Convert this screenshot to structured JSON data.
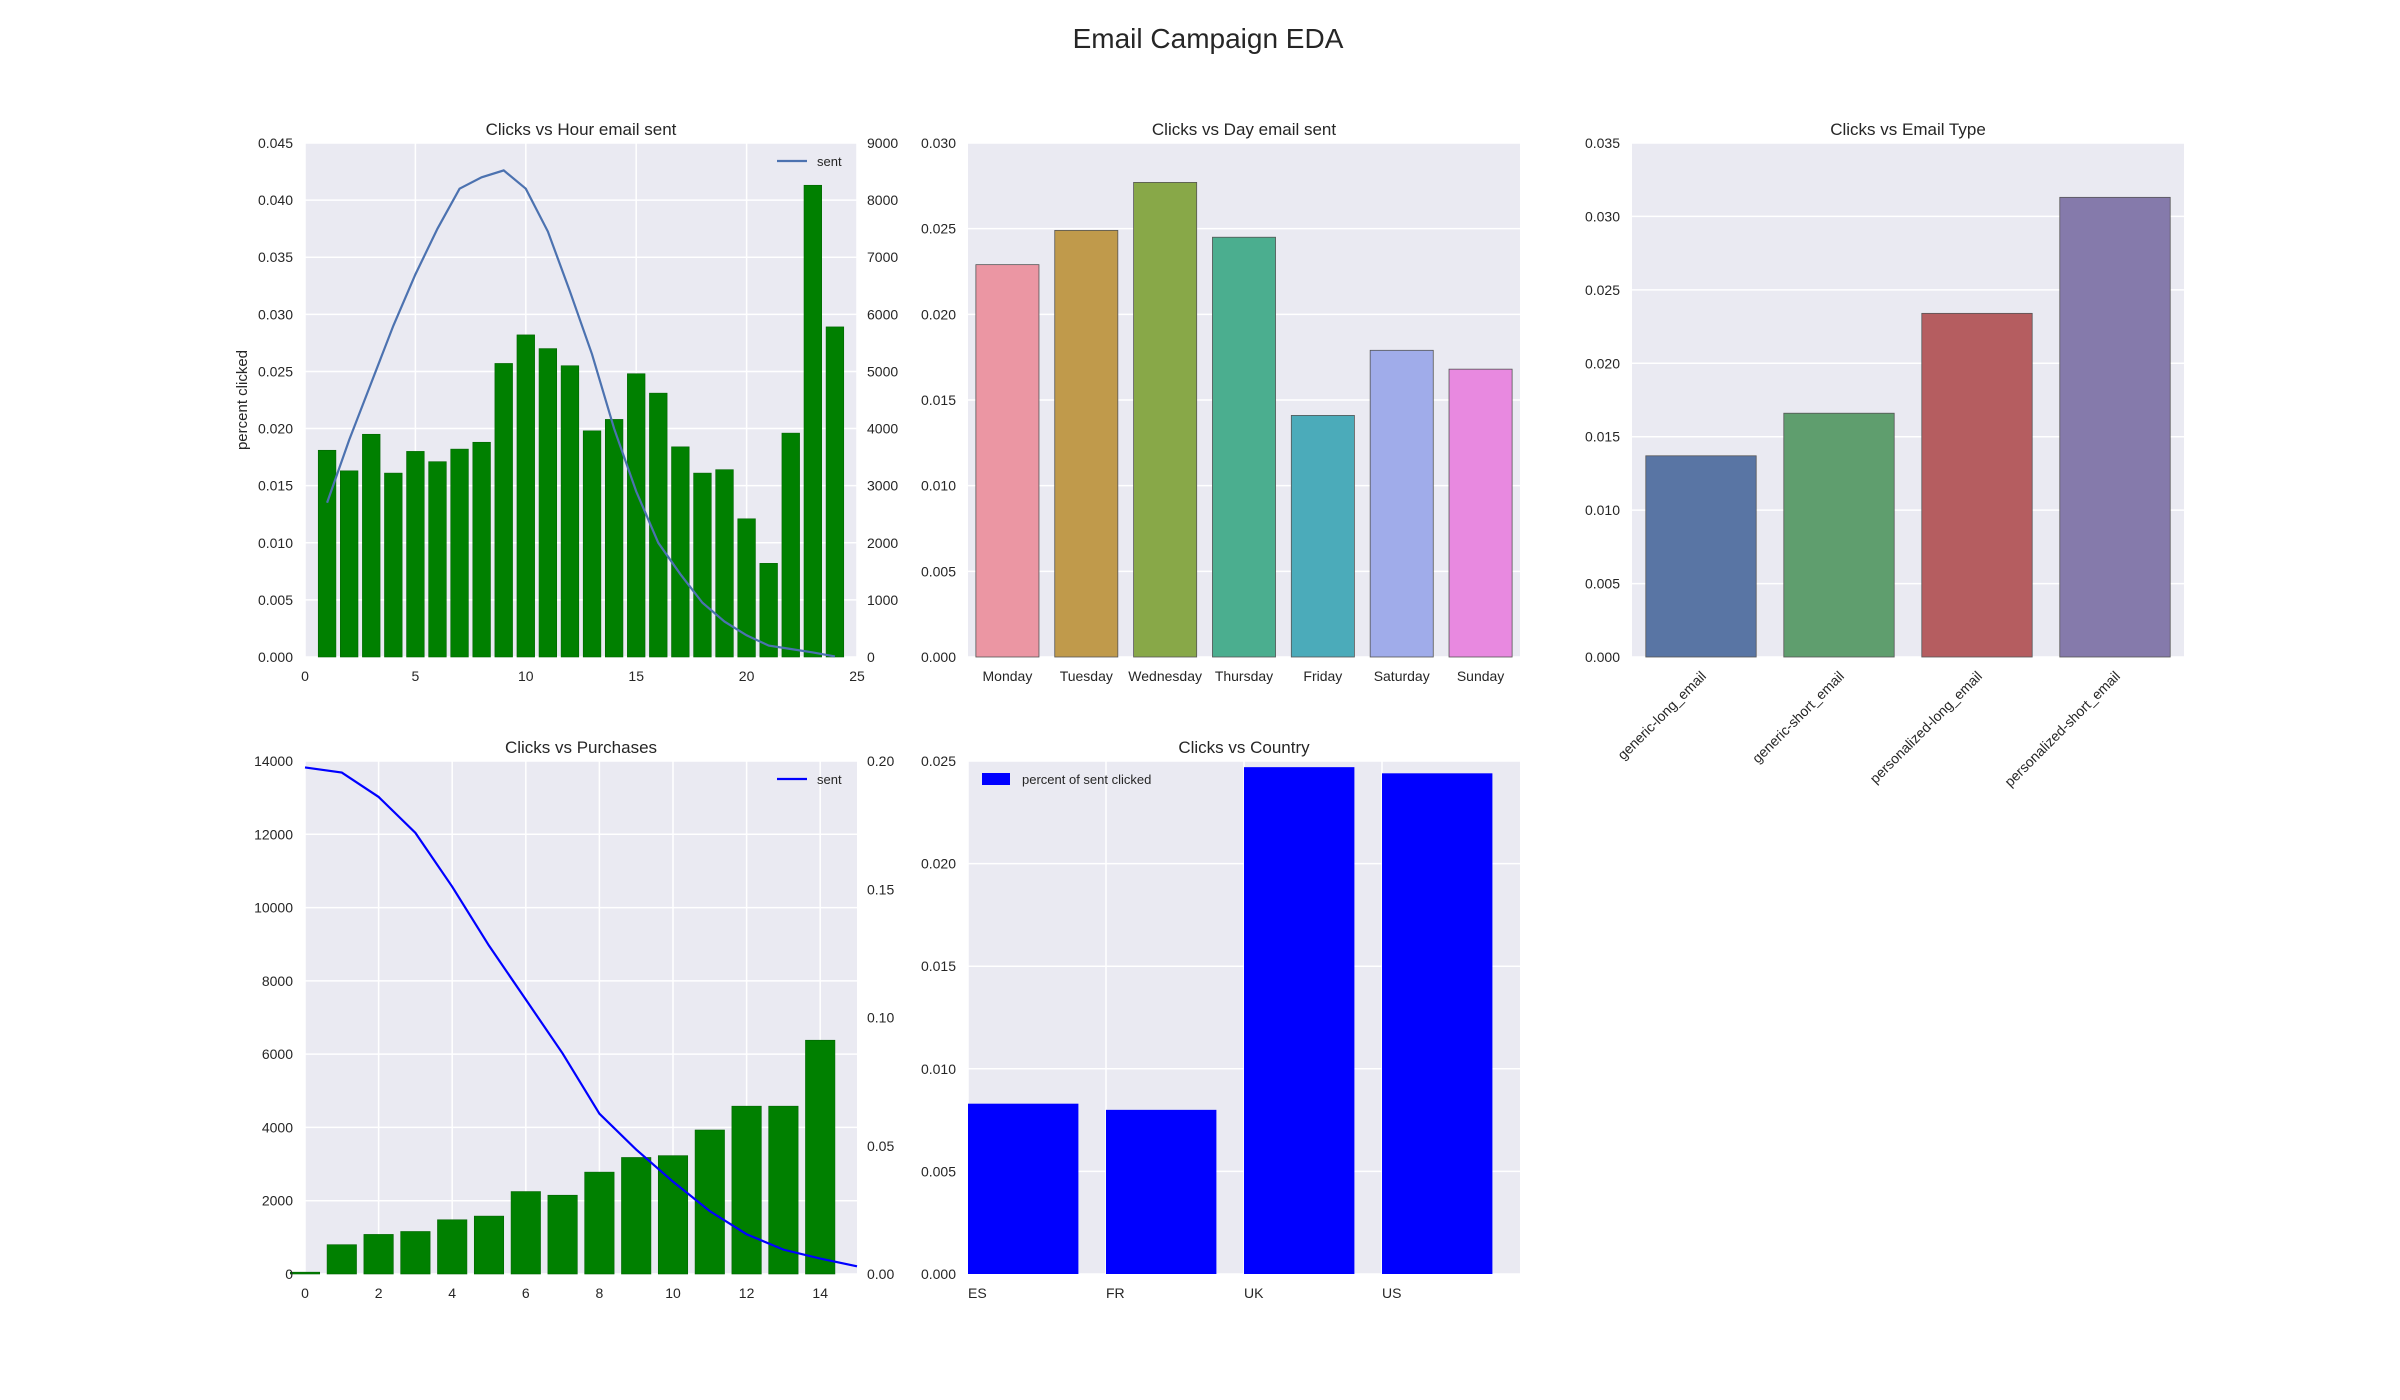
{
  "figure": {
    "title": "Email Campaign EDA"
  },
  "chart_data": [
    {
      "id": "hour",
      "type": "bar",
      "title": "Clicks vs Hour email sent",
      "xlabel": "",
      "ylabel": "percent clicked",
      "x": [
        1,
        2,
        3,
        4,
        5,
        6,
        7,
        8,
        9,
        10,
        11,
        12,
        13,
        14,
        15,
        16,
        17,
        18,
        19,
        20,
        21,
        22,
        23,
        24
      ],
      "values": [
        0.0181,
        0.0163,
        0.0195,
        0.0161,
        0.018,
        0.0171,
        0.0182,
        0.0188,
        0.0257,
        0.0282,
        0.027,
        0.0255,
        0.0198,
        0.0208,
        0.0248,
        0.0231,
        0.0184,
        0.0161,
        0.0164,
        0.0121,
        0.0082,
        0.0196,
        0.0413,
        0.0289
      ],
      "bar_color": "#008000",
      "xlim": [
        0,
        25
      ],
      "ylim": [
        0,
        0.045
      ],
      "xticks": [
        "0",
        "5",
        "10",
        "15",
        "20",
        "25"
      ],
      "yticks": [
        "0.000",
        "0.005",
        "0.010",
        "0.015",
        "0.020",
        "0.025",
        "0.030",
        "0.035",
        "0.040",
        "0.045"
      ],
      "secondary": {
        "name": "sent",
        "type": "line",
        "color": "#4c72b0",
        "x": [
          1,
          2,
          3,
          4,
          5,
          6,
          7,
          8,
          9,
          10,
          11,
          12,
          13,
          14,
          15,
          16,
          17,
          18,
          19,
          20,
          21,
          22,
          23,
          24
        ],
        "values": [
          2700,
          3800,
          4800,
          5800,
          6700,
          7500,
          8200,
          8400,
          8520,
          8200,
          7450,
          6400,
          5300,
          4000,
          2900,
          2000,
          1450,
          950,
          620,
          380,
          200,
          140,
          80,
          10
        ],
        "ylim": [
          0,
          9000
        ],
        "yticks": [
          "0",
          "1000",
          "2000",
          "3000",
          "4000",
          "5000",
          "6000",
          "7000",
          "8000",
          "9000"
        ]
      },
      "legend": {
        "entries": [
          "sent"
        ],
        "placement": "top-right"
      },
      "grid": true
    },
    {
      "id": "day",
      "type": "bar",
      "title": "Clicks vs Day email sent",
      "categories": [
        "Monday",
        "Tuesday",
        "Wednesday",
        "Thursday",
        "Friday",
        "Saturday",
        "Sunday"
      ],
      "values": [
        0.0229,
        0.0249,
        0.0277,
        0.0245,
        0.0141,
        0.0179,
        0.0168
      ],
      "colors": [
        "#eb96a3",
        "#c09a4b",
        "#88a848",
        "#4bae8f",
        "#4babba",
        "#a0acea",
        "#e889e0"
      ],
      "ylim": [
        0,
        0.03
      ],
      "yticks": [
        "0.000",
        "0.005",
        "0.010",
        "0.015",
        "0.020",
        "0.025",
        "0.030"
      ],
      "grid": true
    },
    {
      "id": "type",
      "type": "bar",
      "title": "Clicks vs Email Type",
      "categories": [
        "generic-long_email",
        "generic-short_email",
        "personalized-long_email",
        "personalized-short_email"
      ],
      "values": [
        0.0137,
        0.0166,
        0.0234,
        0.0313
      ],
      "colors": [
        "#5975a4",
        "#5f9e6e",
        "#b55d60",
        "#857aab"
      ],
      "ylim": [
        0,
        0.035
      ],
      "yticks": [
        "0.000",
        "0.005",
        "0.010",
        "0.015",
        "0.020",
        "0.025",
        "0.030",
        "0.035"
      ],
      "grid": true
    },
    {
      "id": "purchases",
      "type": "bar",
      "title": "Clicks vs Purchases",
      "x": [
        0,
        1,
        2,
        3,
        4,
        5,
        6,
        7,
        8,
        9,
        10,
        11,
        12,
        13,
        14
      ],
      "values": [
        50,
        800,
        1080,
        1160,
        1480,
        1580,
        2250,
        2150,
        2780,
        3180,
        3230,
        3930,
        4580,
        4580,
        6380
      ],
      "bar_color": "#008000",
      "xlim": [
        0,
        15
      ],
      "ylim": [
        0,
        14000
      ],
      "xticks": [
        "0",
        "2",
        "4",
        "6",
        "8",
        "10",
        "12",
        "14"
      ],
      "yticks": [
        "0",
        "2000",
        "4000",
        "6000",
        "8000",
        "10000",
        "12000",
        "14000"
      ],
      "secondary": {
        "name": "sent",
        "type": "line",
        "color": "#0000ff",
        "x": [
          0,
          1,
          2,
          3,
          4,
          5,
          6,
          7,
          8,
          9,
          10,
          11,
          12,
          13,
          14,
          15
        ],
        "values": [
          0.1975,
          0.1955,
          0.186,
          0.172,
          0.151,
          0.128,
          0.107,
          0.086,
          0.0625,
          0.0485,
          0.036,
          0.0245,
          0.0155,
          0.0095,
          0.006,
          0.003
        ],
        "ylim": [
          0,
          0.2
        ],
        "yticks": [
          "0.00",
          "0.05",
          "0.10",
          "0.15",
          "0.20"
        ]
      },
      "legend": {
        "entries": [
          "sent"
        ],
        "placement": "top-right"
      },
      "grid": true
    },
    {
      "id": "country",
      "type": "bar",
      "title": "Clicks vs Country",
      "categories": [
        "ES",
        "FR",
        "UK",
        "US"
      ],
      "values": [
        0.0083,
        0.008,
        0.0247,
        0.0244
      ],
      "bar_color": "#0000ff",
      "ylim": [
        0,
        0.025
      ],
      "yticks": [
        "0.000",
        "0.005",
        "0.010",
        "0.015",
        "0.020",
        "0.025"
      ],
      "legend": {
        "entries": [
          "percent of sent clicked"
        ],
        "placement": "top-left"
      },
      "grid": true
    }
  ]
}
